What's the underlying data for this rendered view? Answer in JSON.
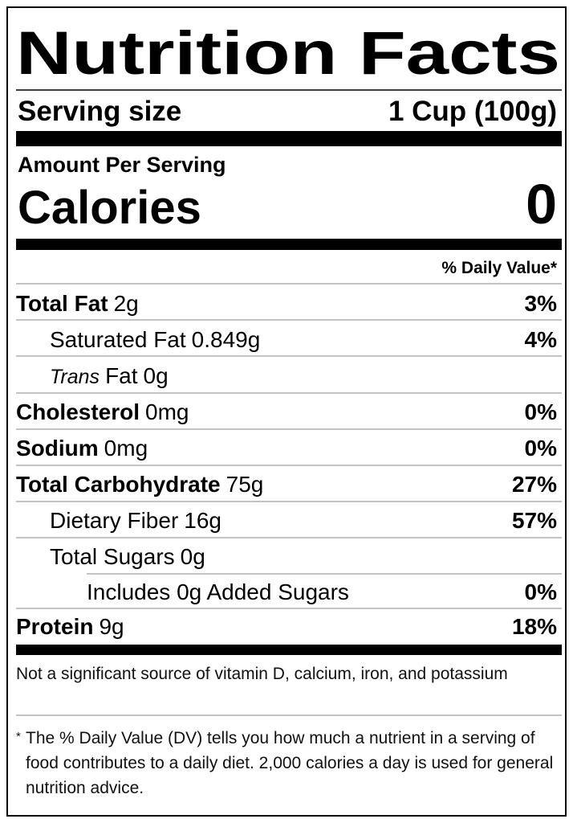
{
  "title": "Nutrition Facts",
  "serving": {
    "label": "Serving size",
    "value": "1 Cup (100g)"
  },
  "amount_per_serving": "Amount Per Serving",
  "calories": {
    "label": "Calories",
    "value": "0"
  },
  "dv_header": "% Daily Value*",
  "rows": [
    {
      "name": "Total Fat",
      "amount": "2g",
      "dv": "3%"
    },
    {
      "name": "Saturated Fat",
      "amount": "0.849g",
      "dv": "4%"
    },
    {
      "prefix": "Trans",
      "name": "Fat",
      "amount": "0g"
    },
    {
      "name": "Cholesterol",
      "amount": "0mg",
      "dv": "0%"
    },
    {
      "name": "Sodium",
      "amount": "0mg",
      "dv": "0%"
    },
    {
      "name": "Total Carbohydrate",
      "amount": "75g",
      "dv": "27%"
    },
    {
      "name": "Dietary Fiber",
      "amount": "16g",
      "dv": "57%"
    },
    {
      "name": "Total Sugars",
      "amount": "0g"
    },
    {
      "name": "Includes 0g Added Sugars",
      "dv": "0%"
    },
    {
      "name": "Protein",
      "amount": "9g",
      "dv": "18%"
    }
  ],
  "note": "Not a significant source of vitamin D, calcium, iron, and potassium",
  "footnote": {
    "mark": "*",
    "text": "The % Daily Value (DV) tells you how much a nutrient in a serving of food contributes to a daily diet. 2,000 calories a day is used for general nutrition advice."
  }
}
